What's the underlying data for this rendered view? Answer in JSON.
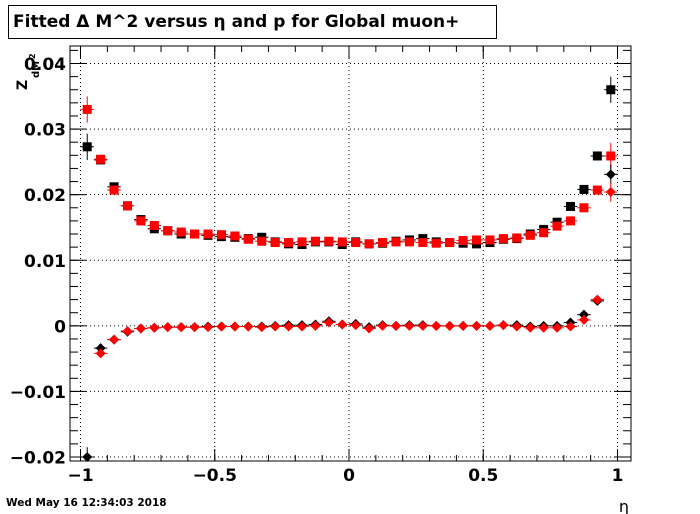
{
  "chart_data": {
    "type": "scatter",
    "title": "Fitted Δ M^2 versus η and p for Global muon+",
    "xlabel": "η",
    "ylabel_main": "Z",
    "ylabel_sub": "dM",
    "ylabel_sup": "2",
    "xlim": [
      -1.0,
      1.0
    ],
    "ylim": [
      -0.02,
      0.042
    ],
    "xticks": [
      -1,
      -0.5,
      0,
      0.5,
      1
    ],
    "xtick_labels": [
      "−1",
      "−0.5",
      "0",
      "0.5",
      "1"
    ],
    "yticks": [
      -0.02,
      -0.01,
      0,
      0.01,
      0.02,
      0.03,
      0.04
    ],
    "ytick_labels": [
      "−0.02",
      "−0.01",
      "0",
      "0.01",
      "0.02",
      "0.03",
      "0.04"
    ],
    "grid": true,
    "colors": {
      "black": "#000000",
      "red": "#ff0000",
      "grid": "#000000"
    },
    "series": [
      {
        "marker": "square",
        "color": "#000000",
        "x": [
          -0.975,
          -0.925,
          -0.875,
          -0.825,
          -0.775,
          -0.725,
          -0.675,
          -0.625,
          -0.575,
          -0.525,
          -0.475,
          -0.425,
          -0.375,
          -0.325,
          -0.275,
          -0.225,
          -0.175,
          -0.125,
          -0.075,
          -0.025,
          0.025,
          0.075,
          0.125,
          0.175,
          0.225,
          0.275,
          0.325,
          0.375,
          0.425,
          0.475,
          0.525,
          0.575,
          0.625,
          0.675,
          0.725,
          0.775,
          0.825,
          0.875,
          0.925,
          0.975
        ],
        "y": [
          0.0273,
          0.0253,
          0.0212,
          0.0183,
          0.0162,
          0.0148,
          0.0145,
          0.014,
          0.014,
          0.0138,
          0.0136,
          0.0135,
          0.0133,
          0.0135,
          0.0128,
          0.0125,
          0.0124,
          0.0128,
          0.0128,
          0.0124,
          0.0128,
          0.0125,
          0.0126,
          0.0129,
          0.0131,
          0.0133,
          0.0128,
          0.0127,
          0.0126,
          0.0125,
          0.0127,
          0.0132,
          0.0133,
          0.014,
          0.0147,
          0.0158,
          0.0182,
          0.0208,
          0.0259,
          0.036
        ],
        "err": [
          0.002,
          0.0005,
          0.0005,
          0.0004,
          0.0004,
          0.0004,
          0.0004,
          0.0004,
          0.0004,
          0.0004,
          0.0004,
          0.0004,
          0.0004,
          0.0004,
          0.0004,
          0.0004,
          0.0004,
          0.0004,
          0.0004,
          0.0004,
          0.0004,
          0.0004,
          0.0004,
          0.0004,
          0.0004,
          0.0004,
          0.0004,
          0.0004,
          0.0004,
          0.0004,
          0.0004,
          0.0004,
          0.0004,
          0.0004,
          0.0004,
          0.0004,
          0.0004,
          0.0005,
          0.0005,
          0.002
        ]
      },
      {
        "marker": "square",
        "color": "#ff0000",
        "x": [
          -0.975,
          -0.925,
          -0.875,
          -0.825,
          -0.775,
          -0.725,
          -0.675,
          -0.625,
          -0.575,
          -0.525,
          -0.475,
          -0.425,
          -0.375,
          -0.325,
          -0.275,
          -0.225,
          -0.175,
          -0.125,
          -0.075,
          -0.025,
          0.025,
          0.075,
          0.125,
          0.175,
          0.225,
          0.275,
          0.325,
          0.375,
          0.425,
          0.475,
          0.525,
          0.575,
          0.625,
          0.675,
          0.725,
          0.775,
          0.825,
          0.875,
          0.925,
          0.975
        ],
        "y": [
          0.033,
          0.0254,
          0.0207,
          0.0183,
          0.016,
          0.0153,
          0.0145,
          0.0143,
          0.014,
          0.014,
          0.0139,
          0.0137,
          0.0132,
          0.0129,
          0.0127,
          0.0127,
          0.0128,
          0.0129,
          0.0129,
          0.0128,
          0.0127,
          0.0125,
          0.0127,
          0.0128,
          0.0128,
          0.0127,
          0.0126,
          0.0127,
          0.013,
          0.0131,
          0.0131,
          0.0133,
          0.0134,
          0.0138,
          0.0142,
          0.0152,
          0.016,
          0.018,
          0.0207,
          0.0259
        ],
        "err": [
          0.002,
          0.0005,
          0.0005,
          0.0004,
          0.0004,
          0.0004,
          0.0004,
          0.0004,
          0.0004,
          0.0004,
          0.0004,
          0.0004,
          0.0004,
          0.0004,
          0.0004,
          0.0004,
          0.0004,
          0.0004,
          0.0004,
          0.0004,
          0.0004,
          0.0004,
          0.0004,
          0.0004,
          0.0004,
          0.0004,
          0.0004,
          0.0004,
          0.0004,
          0.0004,
          0.0004,
          0.0004,
          0.0004,
          0.0004,
          0.0004,
          0.0004,
          0.0004,
          0.0005,
          0.0005,
          0.002
        ]
      },
      {
        "marker": "diamond",
        "color": "#000000",
        "x": [
          -0.975,
          -0.925,
          -0.875,
          -0.825,
          -0.775,
          -0.725,
          -0.675,
          -0.625,
          -0.575,
          -0.525,
          -0.475,
          -0.425,
          -0.375,
          -0.325,
          -0.275,
          -0.225,
          -0.175,
          -0.125,
          -0.075,
          -0.025,
          0.025,
          0.075,
          0.125,
          0.175,
          0.225,
          0.275,
          0.325,
          0.375,
          0.425,
          0.475,
          0.525,
          0.575,
          0.625,
          0.675,
          0.725,
          0.775,
          0.825,
          0.875,
          0.925,
          0.975
        ],
        "y": [
          -0.02,
          -0.0034,
          -0.0021,
          -0.0009,
          -0.0004,
          -0.0003,
          -0.0002,
          -0.0002,
          -0.0002,
          -0.0001,
          -0.0001,
          -0.0001,
          -0.0001,
          -0.0001,
          0.0,
          0.0001,
          0.0001,
          0.0002,
          0.0007,
          0.0002,
          0.0003,
          -0.0002,
          0.0001,
          0.0,
          0.0001,
          0.0001,
          0.0,
          0.0,
          0.0,
          0.0,
          0.0,
          0.0001,
          0.0001,
          -0.0001,
          0.0,
          0.0,
          0.0005,
          0.0017,
          0.0038,
          0.0231
        ],
        "err": [
          0.0015,
          0.0004,
          0.0004,
          0.0003,
          0.0003,
          0.0003,
          0.0003,
          0.0003,
          0.0003,
          0.0003,
          0.0003,
          0.0003,
          0.0003,
          0.0003,
          0.0003,
          0.0003,
          0.0003,
          0.0003,
          0.0003,
          0.0003,
          0.0003,
          0.0003,
          0.0003,
          0.0003,
          0.0003,
          0.0003,
          0.0003,
          0.0003,
          0.0003,
          0.0003,
          0.0003,
          0.0003,
          0.0003,
          0.0003,
          0.0003,
          0.0003,
          0.0003,
          0.0004,
          0.0004,
          0.0015
        ]
      },
      {
        "marker": "diamond",
        "color": "#ff0000",
        "x": [
          -0.975,
          -0.925,
          -0.875,
          -0.825,
          -0.775,
          -0.725,
          -0.675,
          -0.625,
          -0.575,
          -0.525,
          -0.475,
          -0.425,
          -0.375,
          -0.325,
          -0.275,
          -0.225,
          -0.175,
          -0.125,
          -0.075,
          -0.025,
          0.025,
          0.075,
          0.125,
          0.175,
          0.225,
          0.275,
          0.325,
          0.375,
          0.425,
          0.475,
          0.525,
          0.575,
          0.625,
          0.675,
          0.725,
          0.775,
          0.825,
          0.875,
          0.925,
          0.975
        ],
        "y": [
          null,
          -0.0042,
          -0.0021,
          -0.0008,
          -0.0004,
          -0.0003,
          -0.0002,
          -0.0002,
          -0.0002,
          -0.0002,
          -0.0001,
          -0.0001,
          -0.0001,
          -0.0002,
          -0.0001,
          -0.0001,
          -0.0001,
          0.0,
          0.0005,
          0.0002,
          0.0001,
          -0.0004,
          0.0,
          0.0,
          0.0,
          0.0,
          0.0,
          0.0,
          0.0,
          0.0,
          0.0,
          0.0001,
          -0.0001,
          -0.0003,
          -0.0003,
          -0.0003,
          -0.0001,
          0.0009,
          0.004,
          0.0204
        ],
        "err": [
          0.0,
          0.0004,
          0.0004,
          0.0003,
          0.0003,
          0.0003,
          0.0003,
          0.0003,
          0.0003,
          0.0003,
          0.0003,
          0.0003,
          0.0003,
          0.0003,
          0.0003,
          0.0003,
          0.0003,
          0.0003,
          0.0003,
          0.0003,
          0.0003,
          0.0003,
          0.0003,
          0.0003,
          0.0003,
          0.0003,
          0.0003,
          0.0003,
          0.0003,
          0.0003,
          0.0003,
          0.0003,
          0.0003,
          0.0003,
          0.0003,
          0.0003,
          0.0003,
          0.0004,
          0.0004,
          0.0015
        ]
      }
    ]
  },
  "footer": {
    "timestamp": "Wed May 16 12:34:03 2018"
  }
}
